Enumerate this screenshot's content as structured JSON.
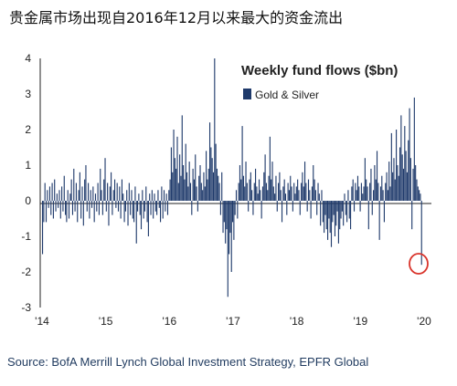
{
  "headline": "贵金属市场出现自2016年12月以来最大的资金流出",
  "source": "Source: BofA Merrill Lynch Global Investment Strategy, EPFR Global",
  "colors": {
    "bar": "#1f3a6b",
    "highlight_circle": "#d9342b",
    "axis": "#222222"
  },
  "chart_data": {
    "type": "bar",
    "title": "Weekly fund flows ($bn)",
    "xlabel": "",
    "ylabel": "",
    "legend": {
      "position": "top-right",
      "entries": [
        "Gold & Silver"
      ]
    },
    "ylim": [
      -3,
      4
    ],
    "y_ticks": [
      "4",
      "3",
      "2",
      "1",
      "0",
      "-1",
      "-2",
      "-3"
    ],
    "x_ticks": [
      "'14",
      "'15",
      "'16",
      "'17",
      "'18",
      "'19",
      "'20"
    ],
    "grid": false,
    "series": [
      {
        "name": "Gold & Silver",
        "values": [
          -1.5,
          -0.6,
          0.5,
          -0.6,
          0.3,
          -0.2,
          0.4,
          -0.4,
          0.5,
          -0.5,
          0.6,
          -0.3,
          0.2,
          -0.2,
          0.3,
          -0.5,
          0.4,
          -0.3,
          0.7,
          -0.4,
          -0.6,
          0.3,
          -0.5,
          0.2,
          0.6,
          -0.4,
          0.9,
          -0.3,
          0.5,
          -0.6,
          0.3,
          0.8,
          -0.5,
          0.4,
          -0.7,
          0.6,
          1.0,
          -0.3,
          0.5,
          -0.5,
          0.3,
          -0.2,
          0.4,
          -0.6,
          0.2,
          -0.3,
          0.5,
          -0.4,
          0.9,
          0.3,
          -0.4,
          0.6,
          1.2,
          -0.3,
          0.5,
          -0.7,
          0.4,
          0.8,
          -0.4,
          0.3,
          0.6,
          -0.2,
          0.5,
          -0.3,
          0.4,
          -0.5,
          0.6,
          0.2,
          -0.6,
          -0.3,
          0.3,
          -0.7,
          0.5,
          -0.4,
          0.3,
          -0.5,
          -0.6,
          0.4,
          -1.2,
          -0.3,
          0.2,
          -0.4,
          -0.8,
          0.3,
          -0.5,
          -0.3,
          0.4,
          -0.6,
          -1.0,
          0.2,
          -0.4,
          0.3,
          -0.5,
          0.2,
          -0.3,
          -0.4,
          0.3,
          -0.2,
          -0.6,
          0.4,
          -0.5,
          0.3,
          -0.3,
          0.2,
          -0.4,
          0.3,
          0.6,
          1.5,
          0.8,
          2.0,
          1.2,
          0.9,
          1.8,
          0.5,
          1.3,
          0.7,
          2.4,
          1.0,
          0.6,
          1.6,
          0.8,
          0.4,
          1.1,
          0.5,
          -0.4,
          0.9,
          0.6,
          1.3,
          0.4,
          -0.3,
          0.7,
          1.0,
          0.5,
          0.3,
          0.8,
          0.4,
          1.4,
          0.6,
          0.9,
          2.2,
          1.5,
          1.2,
          0.8,
          4.0,
          1.6,
          0.9,
          0.7,
          0.5,
          -0.4,
          0.8,
          -0.9,
          -0.6,
          -1.2,
          -0.8,
          -2.7,
          -1.5,
          -0.9,
          -2.0,
          -0.6,
          -1.1,
          -0.4,
          0.3,
          -0.5,
          0.5,
          1.0,
          0.6,
          2.1,
          0.7,
          0.4,
          1.1,
          0.5,
          -0.3,
          0.6,
          0.8,
          0.3,
          -0.4,
          0.5,
          0.9,
          0.4,
          0.2,
          0.6,
          0.3,
          -0.5,
          0.4,
          0.8,
          1.3,
          0.5,
          0.3,
          0.7,
          1.8,
          0.6,
          1.1,
          0.4,
          0.2,
          0.7,
          -0.3,
          0.5,
          0.8,
          0.3,
          -0.6,
          0.4,
          0.6,
          0.2,
          -0.4,
          0.5,
          0.3,
          0.7,
          0.4,
          -0.3,
          0.5,
          0.2,
          0.4,
          0.6,
          0.3,
          -0.4,
          0.5,
          0.8,
          0.4,
          1.1,
          0.5,
          -0.3,
          0.6,
          0.3,
          -0.5,
          0.4,
          1.0,
          0.6,
          0.3,
          -0.4,
          0.5,
          0.2,
          -0.7,
          0.3,
          -0.6,
          -0.9,
          -0.4,
          -0.8,
          -1.1,
          -0.5,
          -0.9,
          -1.3,
          -0.6,
          -0.4,
          -1.0,
          -0.7,
          -0.3,
          -1.2,
          -0.8,
          -0.5,
          -0.3,
          -0.7,
          0.2,
          -0.4,
          -0.6,
          0.3,
          -0.5,
          -0.8,
          0.4,
          0.6,
          -0.3,
          0.5,
          0.3,
          0.7,
          0.4,
          -0.3,
          0.5,
          0.2,
          0.4,
          1.2,
          0.6,
          0.4,
          -0.8,
          0.5,
          0.9,
          -0.4,
          0.3,
          1.0,
          0.6,
          1.4,
          0.5,
          -1.1,
          0.4,
          0.7,
          0.3,
          -0.6,
          0.5,
          0.8,
          0.3,
          1.1,
          0.4,
          1.9,
          0.8,
          1.2,
          0.6,
          2.0,
          1.0,
          0.7,
          1.5,
          2.4,
          1.3,
          0.9,
          2.1,
          1.4,
          0.8,
          1.7,
          2.6,
          1.2,
          -0.8,
          0.9,
          2.9,
          1.0,
          0.6,
          0.4,
          0.3,
          0.2,
          -1.8
        ]
      }
    ],
    "annotation": "last-week outflow circled"
  }
}
